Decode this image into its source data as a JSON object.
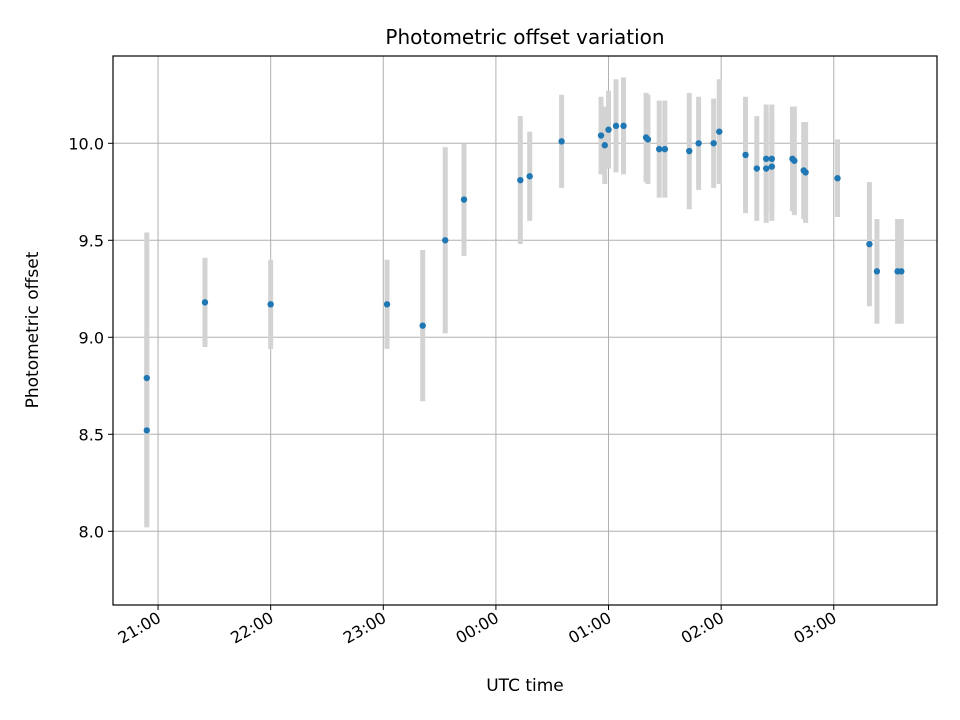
{
  "chart_data": {
    "type": "scatter",
    "title": "Photometric offset variation",
    "xlabel": "UTC time",
    "ylabel": "Photometric offset",
    "x_is_time": true,
    "x_date_note": "times run past midnight",
    "xlim": [
      "20:36",
      "03:55"
    ],
    "ylim": [
      7.62,
      10.45
    ],
    "x_ticks": [
      "21:00",
      "22:00",
      "23:00",
      "00:00",
      "01:00",
      "02:00",
      "03:00"
    ],
    "y_ticks": [
      8.0,
      8.5,
      9.0,
      9.5,
      10.0
    ],
    "grid": true,
    "colors": {
      "marker": "#1f77b4",
      "errorbar": "#d3d3d3",
      "grid": "#b0b0b0"
    },
    "points": [
      {
        "time": "20:54",
        "y": 8.79,
        "err": 0.75
      },
      {
        "time": "20:54",
        "y": 8.52,
        "err": 0.5
      },
      {
        "time": "21:25",
        "y": 9.18,
        "err": 0.23
      },
      {
        "time": "22:00",
        "y": 9.17,
        "err": 0.23
      },
      {
        "time": "23:02",
        "y": 9.17,
        "err": 0.23
      },
      {
        "time": "23:21",
        "y": 9.06,
        "err": 0.39
      },
      {
        "time": "23:33",
        "y": 9.5,
        "err": 0.48
      },
      {
        "time": "23:43",
        "y": 9.71,
        "err": 0.29
      },
      {
        "time": "00:13",
        "y": 9.81,
        "err": 0.33
      },
      {
        "time": "00:18",
        "y": 9.83,
        "err": 0.23
      },
      {
        "time": "00:35",
        "y": 10.01,
        "err": 0.24
      },
      {
        "time": "00:56",
        "y": 10.04,
        "err": 0.2
      },
      {
        "time": "00:58",
        "y": 9.99,
        "err": 0.2
      },
      {
        "time": "01:00",
        "y": 10.07,
        "err": 0.2
      },
      {
        "time": "01:04",
        "y": 10.09,
        "err": 0.24
      },
      {
        "time": "01:08",
        "y": 10.09,
        "err": 0.25
      },
      {
        "time": "01:20",
        "y": 10.03,
        "err": 0.23
      },
      {
        "time": "01:21",
        "y": 10.02,
        "err": 0.23
      },
      {
        "time": "01:27",
        "y": 9.97,
        "err": 0.25
      },
      {
        "time": "01:30",
        "y": 9.97,
        "err": 0.25
      },
      {
        "time": "01:43",
        "y": 9.96,
        "err": 0.3
      },
      {
        "time": "01:48",
        "y": 10.0,
        "err": 0.24
      },
      {
        "time": "01:56",
        "y": 10.0,
        "err": 0.23
      },
      {
        "time": "01:59",
        "y": 10.06,
        "err": 0.27
      },
      {
        "time": "02:13",
        "y": 9.94,
        "err": 0.3
      },
      {
        "time": "02:19",
        "y": 9.87,
        "err": 0.27
      },
      {
        "time": "02:24",
        "y": 9.92,
        "err": 0.28
      },
      {
        "time": "02:24",
        "y": 9.87,
        "err": 0.28
      },
      {
        "time": "02:27",
        "y": 9.92,
        "err": 0.28
      },
      {
        "time": "02:27",
        "y": 9.88,
        "err": 0.28
      },
      {
        "time": "02:38",
        "y": 9.92,
        "err": 0.27
      },
      {
        "time": "02:39",
        "y": 9.91,
        "err": 0.28
      },
      {
        "time": "02:44",
        "y": 9.86,
        "err": 0.25
      },
      {
        "time": "02:45",
        "y": 9.85,
        "err": 0.26
      },
      {
        "time": "03:02",
        "y": 9.82,
        "err": 0.2
      },
      {
        "time": "03:19",
        "y": 9.48,
        "err": 0.32
      },
      {
        "time": "03:23",
        "y": 9.34,
        "err": 0.27
      },
      {
        "time": "03:34",
        "y": 9.34,
        "err": 0.27
      },
      {
        "time": "03:36",
        "y": 9.34,
        "err": 0.27
      }
    ]
  }
}
